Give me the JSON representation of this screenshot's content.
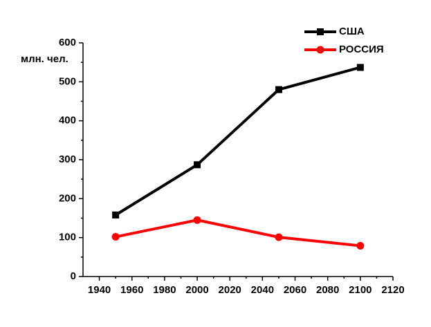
{
  "chart_data": {
    "type": "line",
    "y_label": "млн. чел.",
    "x": [
      1950,
      2000,
      2050,
      2100
    ],
    "series": [
      {
        "name": "США",
        "color": "#000000",
        "marker": "square",
        "values": [
          158,
          287,
          480,
          537
        ]
      },
      {
        "name": "РОССИЯ",
        "color": "#ff0000",
        "marker": "circle",
        "values": [
          102,
          145,
          101,
          79
        ]
      }
    ],
    "xlim": [
      1930,
      2120
    ],
    "xticks": [
      1940,
      1960,
      1980,
      2000,
      2020,
      2040,
      2060,
      2080,
      2100,
      2120
    ],
    "ylim": [
      0,
      600
    ],
    "yticks": [
      0,
      100,
      200,
      300,
      400,
      500,
      600
    ],
    "legend": "top-right"
  }
}
